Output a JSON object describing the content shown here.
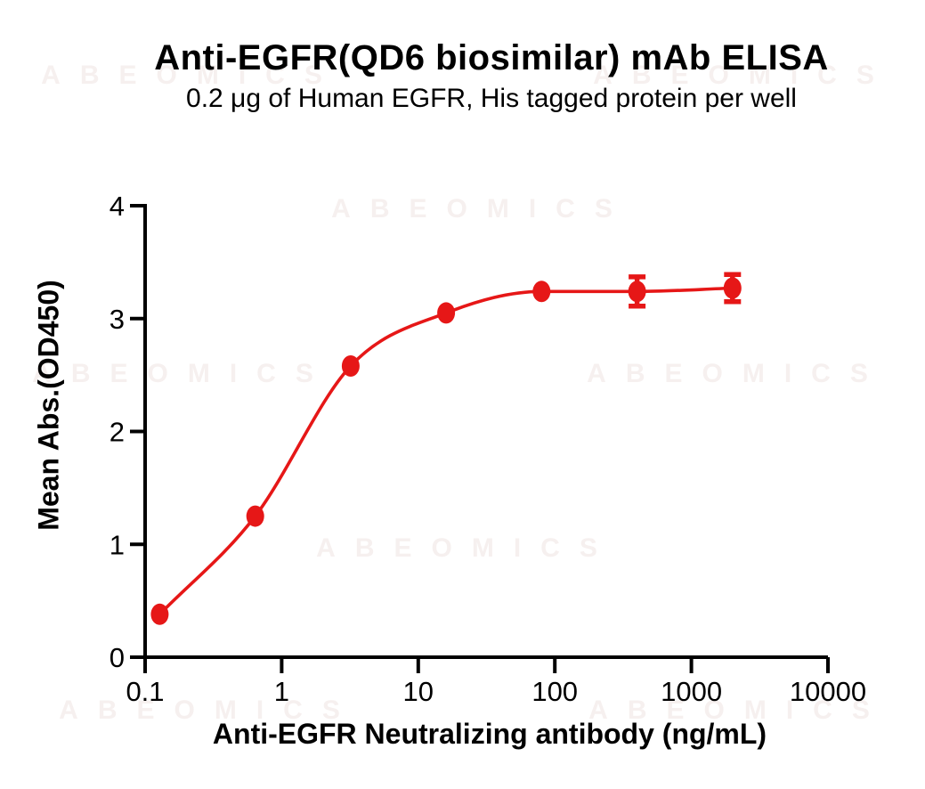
{
  "watermark": {
    "text": "ABEOMICS"
  },
  "header": {
    "title": "Anti-EGFR(QD6 biosimilar) mAb ELISA",
    "subtitle": "0.2 μg of Human EGFR, His tagged protein per well"
  },
  "chart_data": {
    "type": "line",
    "title": "Anti-EGFR(QD6 biosimilar) mAb ELISA",
    "subtitle": "0.2 μg of Human EGFR, His tagged protein per well",
    "xlabel": "Anti-EGFR Neutralizing antibody (ng/mL)",
    "ylabel": "Mean Abs.(OD450)",
    "x_scale": "log10",
    "xlim": [
      0.1,
      10000
    ],
    "ylim": [
      0,
      4
    ],
    "x_tick_labels": [
      "0.1",
      "1",
      "10",
      "100",
      "1000",
      "10000"
    ],
    "x_tick_values": [
      0.1,
      1,
      10,
      100,
      1000,
      10000
    ],
    "y_tick_labels": [
      "0",
      "1",
      "2",
      "3",
      "4"
    ],
    "y_tick_values": [
      0,
      1,
      2,
      3,
      4
    ],
    "grid": false,
    "legend": false,
    "series": [
      {
        "name": "Anti-EGFR neutralizing antibody",
        "color": "#e61717",
        "marker": "ellipse",
        "x": [
          0.128,
          0.64,
          3.2,
          16,
          80,
          400,
          2000
        ],
        "y": [
          0.38,
          1.25,
          2.58,
          3.05,
          3.24,
          3.24,
          3.27
        ],
        "y_err": [
          null,
          null,
          null,
          null,
          null,
          0.13,
          0.12
        ]
      }
    ]
  },
  "colors": {
    "curve_red": "#e61717",
    "axis_black": "#000000",
    "watermark_gray": "#f6f0ef"
  }
}
